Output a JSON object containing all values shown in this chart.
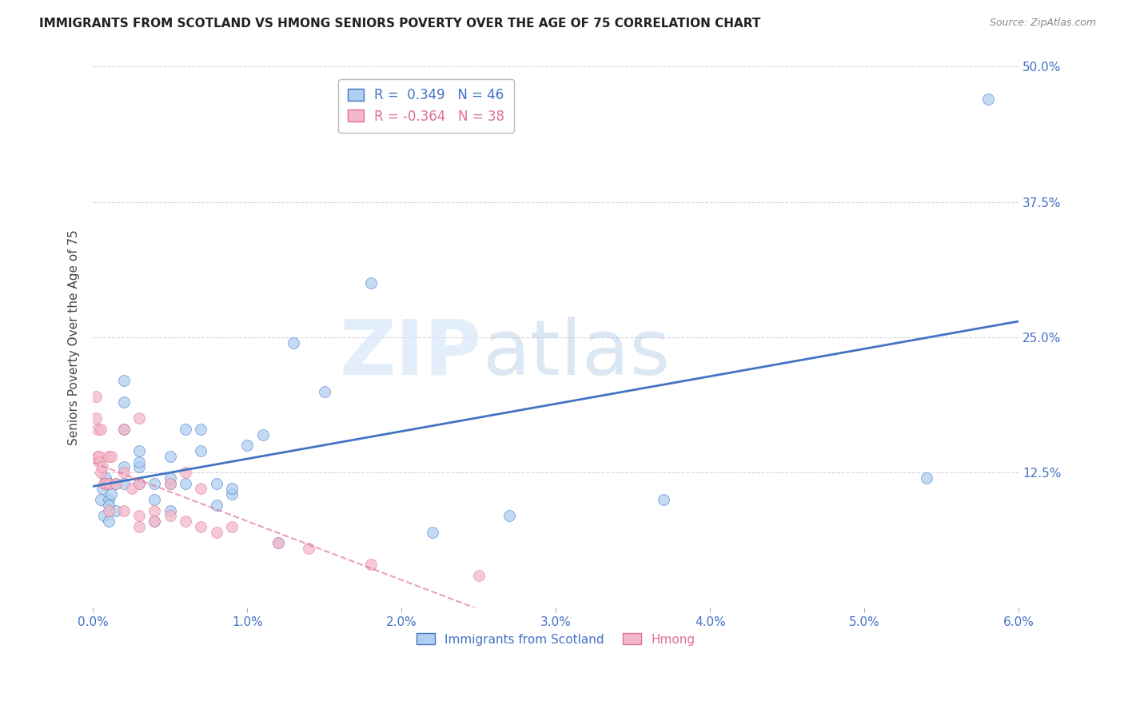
{
  "title": "IMMIGRANTS FROM SCOTLAND VS HMONG SENIORS POVERTY OVER THE AGE OF 75 CORRELATION CHART",
  "source": "Source: ZipAtlas.com",
  "xlabel": "",
  "ylabel": "Seniors Poverty Over the Age of 75",
  "xlim": [
    0.0,
    0.06
  ],
  "ylim": [
    0.0,
    0.5
  ],
  "yticks": [
    0.0,
    0.125,
    0.25,
    0.375,
    0.5
  ],
  "ytick_labels": [
    "",
    "12.5%",
    "25.0%",
    "37.5%",
    "50.0%"
  ],
  "xticks": [
    0.0,
    0.01,
    0.02,
    0.03,
    0.04,
    0.05,
    0.06
  ],
  "xtick_labels": [
    "0.0%",
    "1.0%",
    "2.0%",
    "3.0%",
    "4.0%",
    "5.0%",
    "6.0%"
  ],
  "scotland_color": "#aecff0",
  "hmong_color": "#f5b8ca",
  "scotland_line_color": "#4472c4",
  "hmong_line_color": "#e07090",
  "legend_scotland_label": "Immigrants from Scotland",
  "legend_hmong_label": "Hmong",
  "scotland_R": 0.349,
  "scotland_N": 46,
  "hmong_R": -0.364,
  "hmong_N": 38,
  "watermark_zip": "ZIP",
  "watermark_atlas": "atlas",
  "background_color": "#ffffff",
  "grid_color": "#cccccc",
  "axis_color": "#4472c4",
  "title_color": "#222222",
  "ylabel_color": "#444444",
  "scotland_points_x": [
    0.0005,
    0.0006,
    0.0007,
    0.0008,
    0.001,
    0.001,
    0.001,
    0.001,
    0.0012,
    0.0015,
    0.0015,
    0.002,
    0.002,
    0.002,
    0.002,
    0.002,
    0.003,
    0.003,
    0.003,
    0.003,
    0.004,
    0.004,
    0.004,
    0.005,
    0.005,
    0.005,
    0.005,
    0.006,
    0.006,
    0.007,
    0.007,
    0.008,
    0.008,
    0.009,
    0.009,
    0.01,
    0.011,
    0.012,
    0.013,
    0.015,
    0.018,
    0.022,
    0.027,
    0.037,
    0.054,
    0.058
  ],
  "scotland_points_y": [
    0.1,
    0.11,
    0.085,
    0.12,
    0.1,
    0.115,
    0.095,
    0.08,
    0.105,
    0.115,
    0.09,
    0.115,
    0.13,
    0.165,
    0.19,
    0.21,
    0.115,
    0.13,
    0.135,
    0.145,
    0.08,
    0.1,
    0.115,
    0.09,
    0.115,
    0.12,
    0.14,
    0.115,
    0.165,
    0.165,
    0.145,
    0.095,
    0.115,
    0.105,
    0.11,
    0.15,
    0.16,
    0.06,
    0.245,
    0.2,
    0.3,
    0.07,
    0.085,
    0.1,
    0.12,
    0.47
  ],
  "hmong_points_x": [
    0.0002,
    0.0002,
    0.0003,
    0.0003,
    0.0004,
    0.0004,
    0.0005,
    0.0005,
    0.0006,
    0.0007,
    0.0008,
    0.001,
    0.001,
    0.001,
    0.0012,
    0.0015,
    0.002,
    0.002,
    0.002,
    0.0025,
    0.003,
    0.003,
    0.003,
    0.003,
    0.004,
    0.004,
    0.005,
    0.005,
    0.006,
    0.006,
    0.007,
    0.007,
    0.008,
    0.009,
    0.012,
    0.014,
    0.018,
    0.025
  ],
  "hmong_points_y": [
    0.175,
    0.195,
    0.165,
    0.14,
    0.14,
    0.135,
    0.125,
    0.165,
    0.13,
    0.115,
    0.115,
    0.09,
    0.115,
    0.14,
    0.14,
    0.115,
    0.165,
    0.125,
    0.09,
    0.11,
    0.175,
    0.115,
    0.085,
    0.075,
    0.09,
    0.08,
    0.115,
    0.085,
    0.125,
    0.08,
    0.11,
    0.075,
    0.07,
    0.075,
    0.06,
    0.055,
    0.04,
    0.03
  ]
}
